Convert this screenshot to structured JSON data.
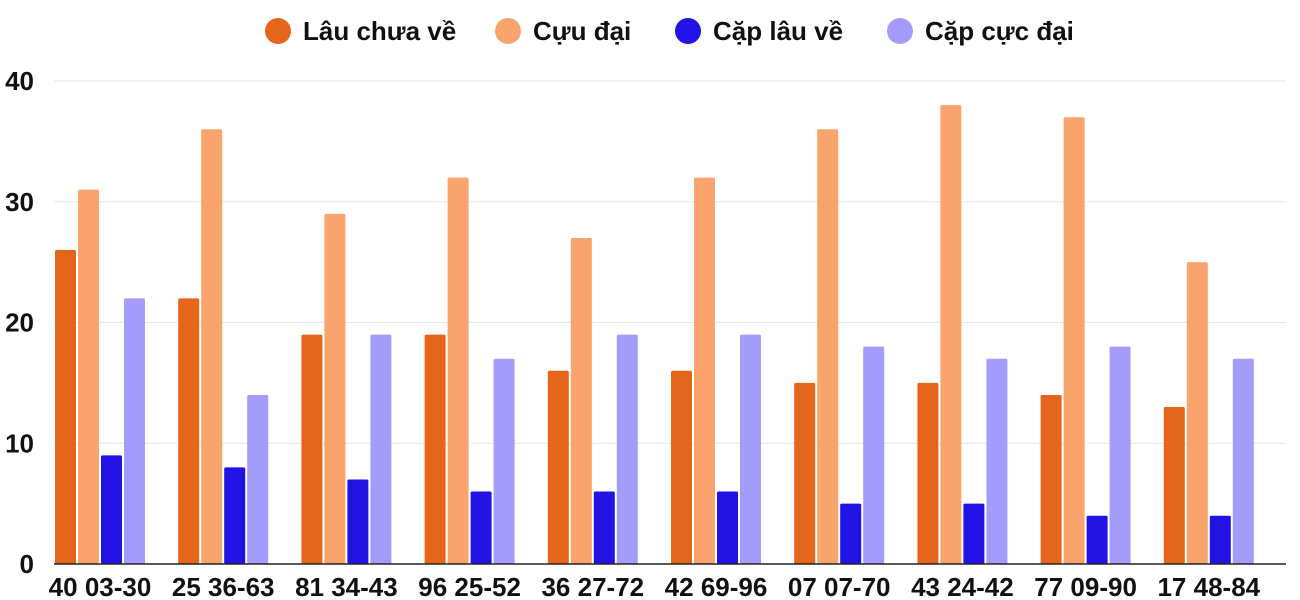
{
  "chart_data": {
    "type": "bar",
    "title": "",
    "xlabel": "",
    "ylabel": "",
    "ylim": [
      0,
      40
    ],
    "yticks": [
      0,
      10,
      20,
      30,
      40
    ],
    "grid": true,
    "legend_position": "top",
    "categories": [
      "40 03-30",
      "25 36-63",
      "81 34-43",
      "96 25-52",
      "36 27-72",
      "42 69-96",
      "07 07-70",
      "43 24-42",
      "77 09-90",
      "17 48-84"
    ],
    "series": [
      {
        "name": "Lâu chưa về",
        "color": "#e5661a",
        "values": [
          26,
          22,
          19,
          19,
          16,
          16,
          15,
          15,
          14,
          13
        ]
      },
      {
        "name": "Cựu đại",
        "color": "#f9a46c",
        "values": [
          31,
          36,
          29,
          32,
          27,
          32,
          36,
          38,
          37,
          25
        ]
      },
      {
        "name": "Cặp lâu về",
        "color": "#2212e3",
        "values": [
          9,
          8,
          7,
          6,
          6,
          6,
          5,
          5,
          4,
          4
        ]
      },
      {
        "name": "Cặp cực đại",
        "color": "#a39cfb",
        "values": [
          22,
          14,
          19,
          17,
          19,
          19,
          18,
          17,
          18,
          17
        ]
      }
    ]
  }
}
